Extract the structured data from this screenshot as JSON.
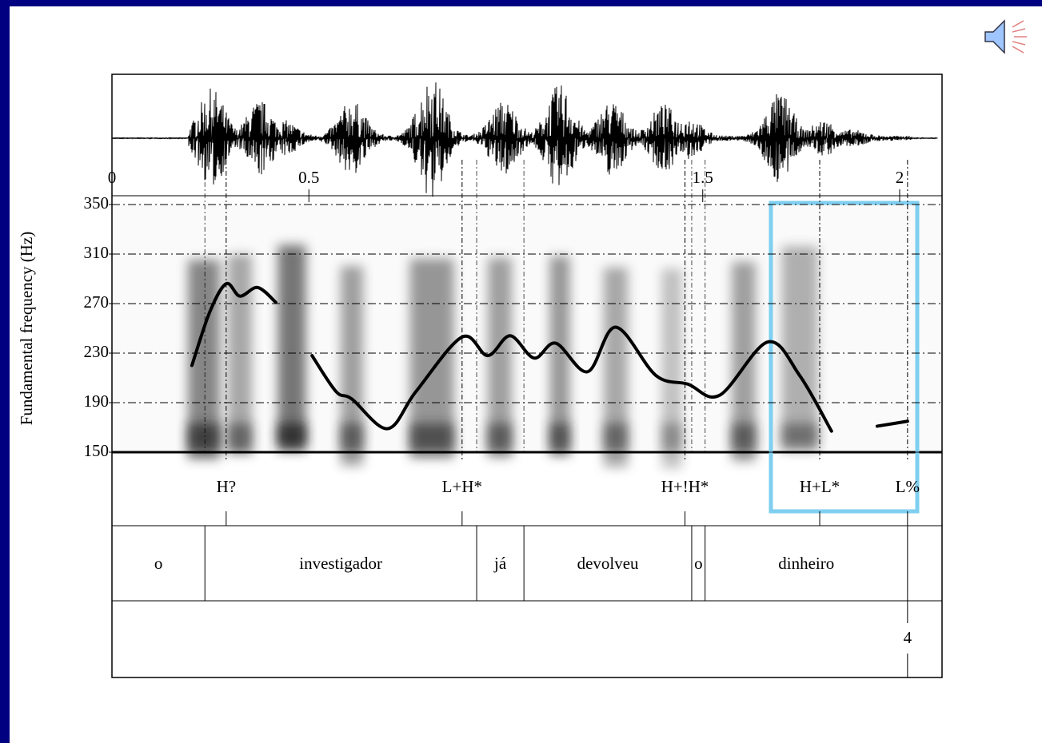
{
  "chart_data": {
    "type": "line",
    "ylabel": "Fundamental frequency (Hz)",
    "xlim": [
      0,
      2.108
    ],
    "xticks": [
      0,
      0.5,
      1.5,
      2
    ],
    "ylim": [
      150,
      350
    ],
    "yticks": [
      150,
      190,
      230,
      270,
      310,
      350
    ],
    "grid": true,
    "color": "#000000",
    "x": [
      0.203,
      0.248,
      0.29,
      0.325,
      0.37,
      0.416,
      null,
      0.508,
      0.569,
      0.609,
      0.7,
      0.772,
      0.889,
      0.954,
      1.011,
      1.072,
      1.127,
      1.208,
      1.279,
      1.381,
      1.462,
      1.543,
      1.665,
      1.746,
      1.827,
      null,
      1.943,
      2.02
    ],
    "values": [
      220,
      263,
      286,
      276,
      283,
      271,
      null,
      228,
      199,
      193,
      169,
      199,
      243,
      228,
      244,
      226,
      238,
      215,
      251,
      212,
      205,
      196,
      239,
      212,
      167,
      null,
      171,
      175
    ],
    "tones": {
      "times": [
        0.29,
        0.889,
        1.455,
        1.797,
        2.02
      ],
      "labels": [
        "H?",
        "L+H*",
        "H+!H*",
        "H+L*",
        "L%"
      ]
    },
    "words": {
      "boundaries": [
        0,
        0.236,
        0.926,
        1.046,
        1.472,
        1.506,
        2.02
      ],
      "labels": [
        "o",
        "investigador",
        "já",
        "devolveu",
        "o",
        "dinheiro"
      ]
    },
    "breaks": {
      "times": [
        2.02
      ],
      "labels": [
        "4"
      ]
    }
  }
}
